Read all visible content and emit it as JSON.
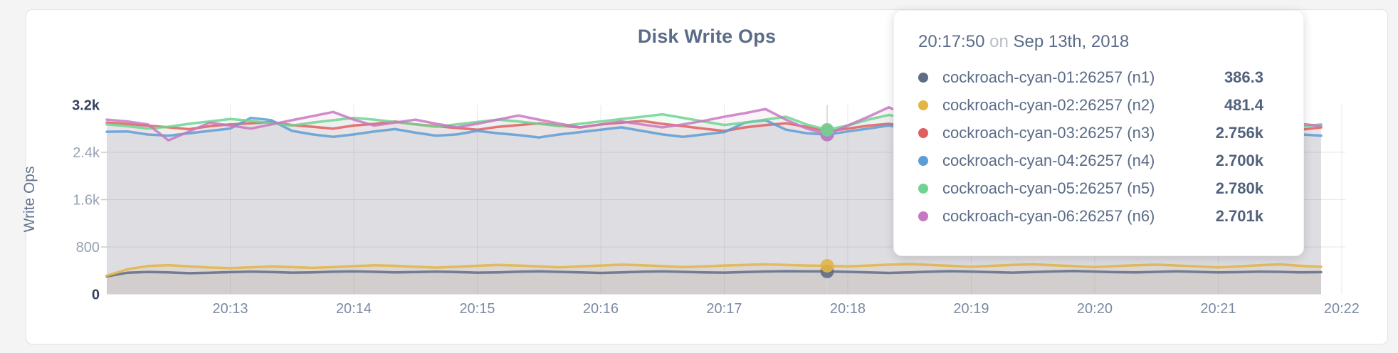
{
  "page": {
    "background": "#f4f4f4"
  },
  "card": {
    "background": "#ffffff",
    "border_color": "#e3e3e3"
  },
  "chart_data": {
    "type": "line",
    "title": "Disk Write Ops",
    "ylabel": "Write Ops",
    "xlabel": "",
    "x_start_time": "20:12:00",
    "x_step_seconds": 10,
    "x_ticks": [
      "20:13",
      "20:14",
      "20:15",
      "20:16",
      "20:17",
      "20:18",
      "20:19",
      "20:20",
      "20:21",
      "20:22"
    ],
    "y_ticks": [
      "0",
      "800",
      "1.6k",
      "2.4k",
      "3.2k"
    ],
    "y_tick_values": [
      0,
      800,
      1600,
      2400,
      3200
    ],
    "ylim": [
      0,
      3200
    ],
    "grid": true,
    "legend_position": "tooltip",
    "hover_index": 35,
    "hover_time": "20:17:50",
    "series": [
      {
        "id": "n1",
        "name": "cockroach-cyan-01:26257 (n1)",
        "color": "#5f6c87",
        "values": [
          302,
          365,
          378,
          370,
          356,
          364,
          374,
          384,
          376,
          366,
          371,
          381,
          389,
          380,
          371,
          376,
          384,
          375,
          366,
          371,
          381,
          389,
          379,
          369,
          361,
          371,
          381,
          389,
          379,
          370,
          366,
          376,
          385,
          391,
          388,
          386.3,
          379,
          369,
          361,
          371,
          381,
          391,
          384,
          374,
          366,
          376,
          386,
          394,
          384,
          374,
          369,
          379,
          389,
          379,
          369,
          374,
          384,
          379,
          369,
          374
        ]
      },
      {
        "id": "n2",
        "name": "cockroach-cyan-02:26257 (n2)",
        "color": "#e2b545",
        "values": [
          312,
          424,
          478,
          492,
          471,
          452,
          441,
          456,
          470,
          461,
          446,
          461,
          476,
          491,
          481,
          466,
          451,
          466,
          481,
          496,
          486,
          471,
          456,
          471,
          486,
          501,
          491,
          476,
          461,
          471,
          486,
          496,
          506,
          496,
          486,
          481.4,
          471,
          486,
          501,
          511,
          496,
          481,
          466,
          481,
          496,
          506,
          491,
          476,
          461,
          476,
          491,
          501,
          486,
          471,
          456,
          471,
          491,
          506,
          481,
          466
        ]
      },
      {
        "id": "n3",
        "name": "cockroach-cyan-03:26257 (n3)",
        "color": "#df5f5f",
        "values": [
          2902,
          2878,
          2851,
          2822,
          2791,
          2841,
          2872,
          2891,
          2912,
          2861,
          2832,
          2801,
          2852,
          2881,
          2921,
          2872,
          2841,
          2811,
          2781,
          2831,
          2861,
          2891,
          2851,
          2821,
          2871,
          2901,
          2931,
          2881,
          2841,
          2801,
          2761,
          2821,
          2861,
          2891,
          2831,
          2756,
          2801,
          2851,
          2881,
          2841,
          2801,
          2771,
          2821,
          2861,
          2891,
          2851,
          2811,
          2781,
          2831,
          2871,
          2901,
          2861,
          2821,
          2791,
          2841,
          2881,
          2851,
          2811,
          2781,
          2821
        ]
      },
      {
        "id": "n4",
        "name": "cockroach-cyan-04:26257 (n4)",
        "color": "#5c9dd6",
        "values": [
          2748,
          2752,
          2701,
          2682,
          2722,
          2762,
          2802,
          2982,
          2942,
          2762,
          2702,
          2662,
          2702,
          2752,
          2792,
          2732,
          2682,
          2702,
          2762,
          2722,
          2692,
          2652,
          2702,
          2742,
          2782,
          2822,
          2762,
          2702,
          2662,
          2702,
          2742,
          2902,
          2942,
          2782,
          2722,
          2700,
          2752,
          2802,
          2852,
          2792,
          2732,
          2692,
          2742,
          2782,
          2822,
          2762,
          2702,
          2672,
          2722,
          2762,
          2802,
          2842,
          2782,
          2722,
          2902,
          2952,
          2852,
          2752,
          2702,
          2682
        ]
      },
      {
        "id": "n5",
        "name": "cockroach-cyan-05:26257 (n5)",
        "color": "#6fd492",
        "values": [
          2872,
          2842,
          2802,
          2832,
          2882,
          2922,
          2962,
          2932,
          2892,
          2852,
          2902,
          2942,
          2982,
          2952,
          2912,
          2872,
          2832,
          2872,
          2912,
          2952,
          2922,
          2882,
          2842,
          2882,
          2922,
          2962,
          3002,
          3042,
          2982,
          2922,
          2862,
          2902,
          2952,
          3002,
          2872,
          2780,
          2852,
          2952,
          3032,
          2972,
          2912,
          2862,
          2902,
          2942,
          2902,
          2862,
          2822,
          2862,
          2902,
          2942,
          2982,
          2942,
          2902,
          2862,
          2902,
          2952,
          2912,
          2872,
          2832,
          2872
        ]
      },
      {
        "id": "n6",
        "name": "cockroach-cyan-06:26257 (n6)",
        "color": "#c878c2",
        "values": [
          2952,
          2922,
          2872,
          2602,
          2752,
          2902,
          2852,
          2802,
          2872,
          2942,
          3012,
          3082,
          2952,
          2852,
          2902,
          2952,
          2882,
          2822,
          2882,
          2952,
          3022,
          2952,
          2882,
          2822,
          2872,
          2922,
          2872,
          2822,
          2872,
          2932,
          3002,
          3062,
          3132,
          2952,
          2802,
          2701,
          2852,
          3002,
          3162,
          3002,
          2872,
          2802,
          2862,
          2922,
          2982,
          2922,
          2862,
          2802,
          2742,
          2802,
          2872,
          2942,
          3012,
          2952,
          2882,
          2822,
          2762,
          2822,
          2882,
          2842
        ]
      }
    ]
  },
  "tooltip": {
    "time": "20:17:50",
    "conjunction": "on",
    "date": "Sep 13th, 2018",
    "rows": [
      {
        "label": "cockroach-cyan-01:26257 (n1)",
        "value": "386.3",
        "color": "#5f6c87"
      },
      {
        "label": "cockroach-cyan-02:26257 (n2)",
        "value": "481.4",
        "color": "#e2b545"
      },
      {
        "label": "cockroach-cyan-03:26257 (n3)",
        "value": "2.756k",
        "color": "#df5f5f"
      },
      {
        "label": "cockroach-cyan-04:26257 (n4)",
        "value": "2.700k",
        "color": "#5c9dd6"
      },
      {
        "label": "cockroach-cyan-05:26257 (n5)",
        "value": "2.780k",
        "color": "#6fd492"
      },
      {
        "label": "cockroach-cyan-06:26257 (n6)",
        "value": "2.701k",
        "color": "#c878c2"
      }
    ]
  }
}
